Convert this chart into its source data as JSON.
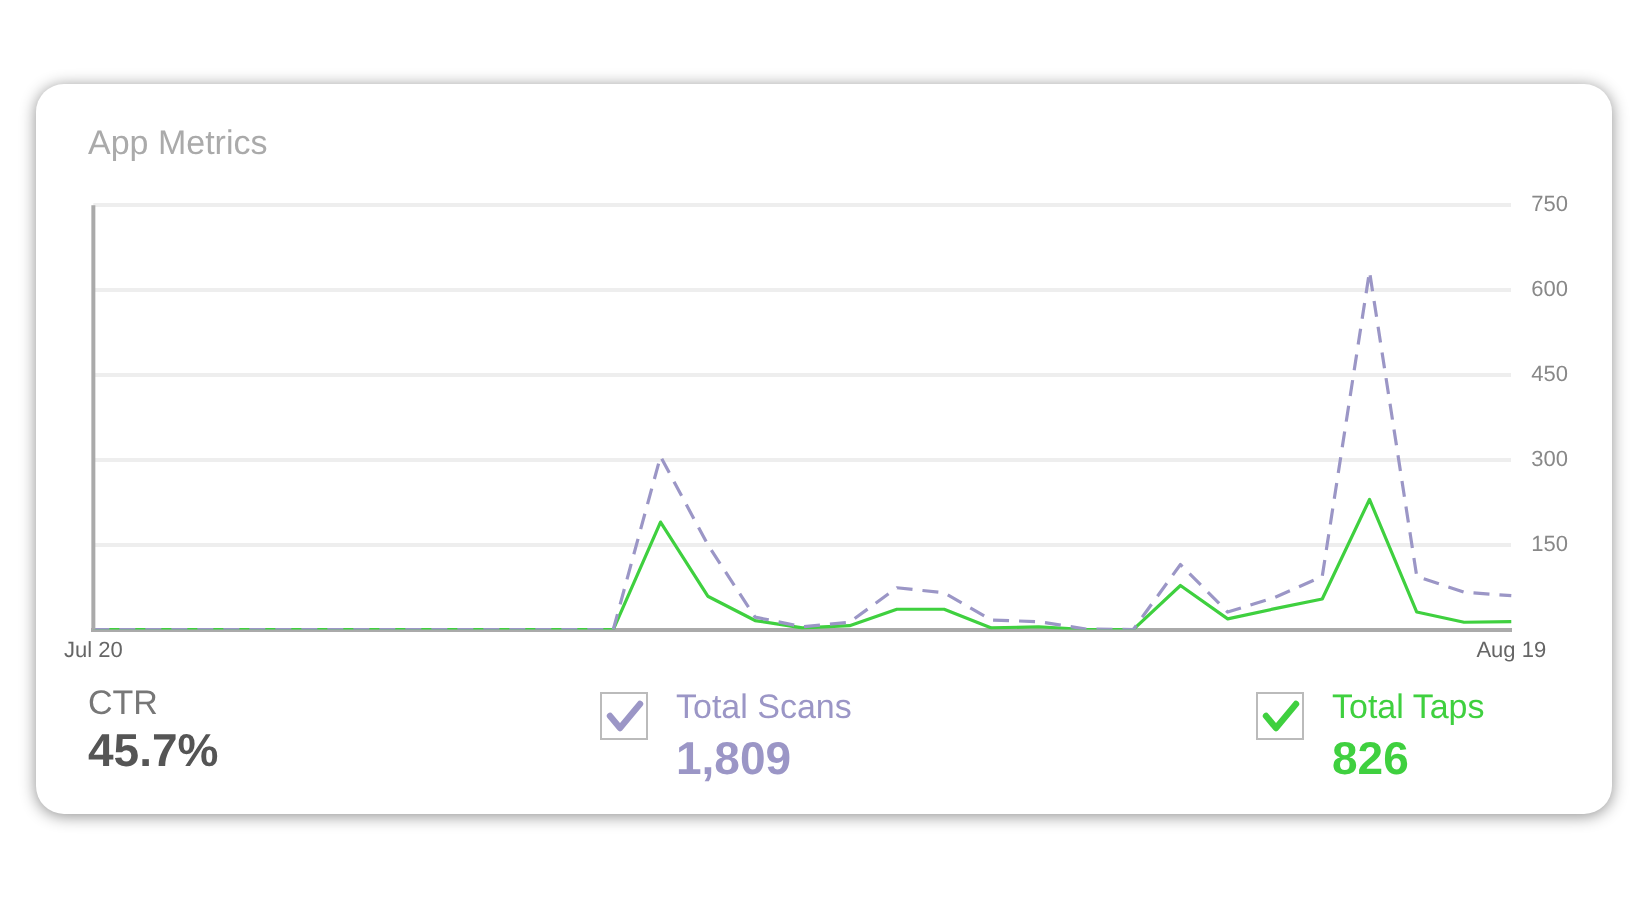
{
  "chart_data": {
    "type": "line",
    "title": "App Metrics",
    "categories": [
      "Jul 20",
      null,
      null,
      null,
      null,
      null,
      null,
      null,
      null,
      null,
      null,
      null,
      null,
      null,
      null,
      null,
      null,
      null,
      null,
      null,
      null,
      null,
      null,
      null,
      null,
      null,
      null,
      null,
      null,
      null,
      "Aug 19"
    ],
    "series": [
      {
        "name": "Total Scans",
        "color": "#9b96c6",
        "line_style": "dashed",
        "values": [
          0,
          0,
          0,
          0,
          0,
          0,
          0,
          0,
          0,
          0,
          0,
          0,
          306,
          150,
          22,
          5,
          13,
          74,
          65,
          17,
          14,
          1,
          0,
          115,
          31,
          57,
          94,
          633,
          94,
          66,
          60
        ]
      },
      {
        "name": "Total Taps",
        "color": "#3fd03f",
        "line_style": "solid",
        "values": [
          0,
          0,
          0,
          0,
          0,
          0,
          0,
          0,
          0,
          0,
          0,
          0,
          190,
          59,
          16,
          3,
          7,
          36,
          36,
          3,
          5,
          0,
          0,
          78,
          19,
          37,
          54,
          230,
          31,
          13,
          14
        ]
      }
    ],
    "ylim": [
      0,
      750
    ],
    "yticks": [
      {
        "value": 0,
        "label": null
      },
      150,
      300,
      450,
      600,
      750
    ],
    "grid": "y",
    "legend": "bottom",
    "marker": "none",
    "annotations": [
      "CTR",
      "45.7%",
      "1,809",
      "826"
    ]
  }
}
